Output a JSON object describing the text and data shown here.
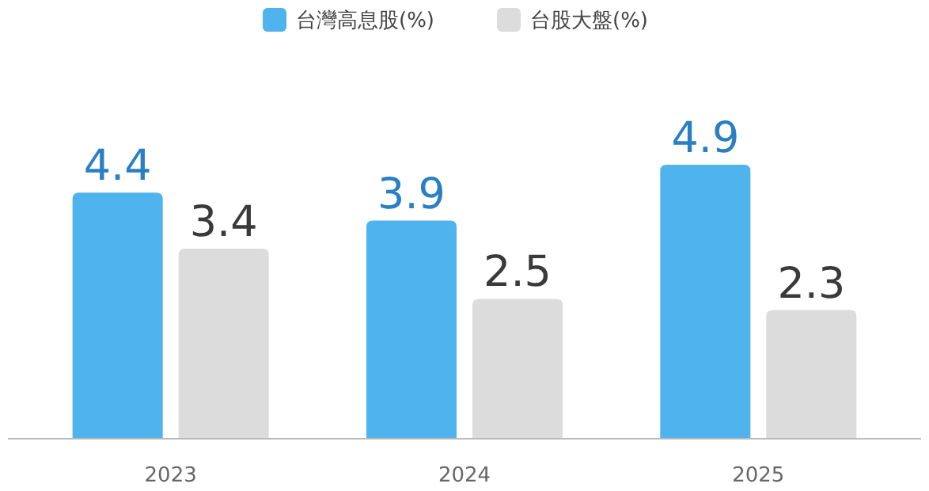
{
  "chart_data": {
    "type": "bar",
    "categories": [
      "2023",
      "2024",
      "2025"
    ],
    "series": [
      {
        "name": "台灣高息股(%)",
        "color": "#4fb3ee",
        "values": [
          4.4,
          3.9,
          4.9
        ]
      },
      {
        "name": "台股大盤(%)",
        "color": "#dcdcdc",
        "values": [
          3.4,
          2.5,
          2.3
        ]
      }
    ],
    "data_labels": true,
    "legend": "top"
  }
}
